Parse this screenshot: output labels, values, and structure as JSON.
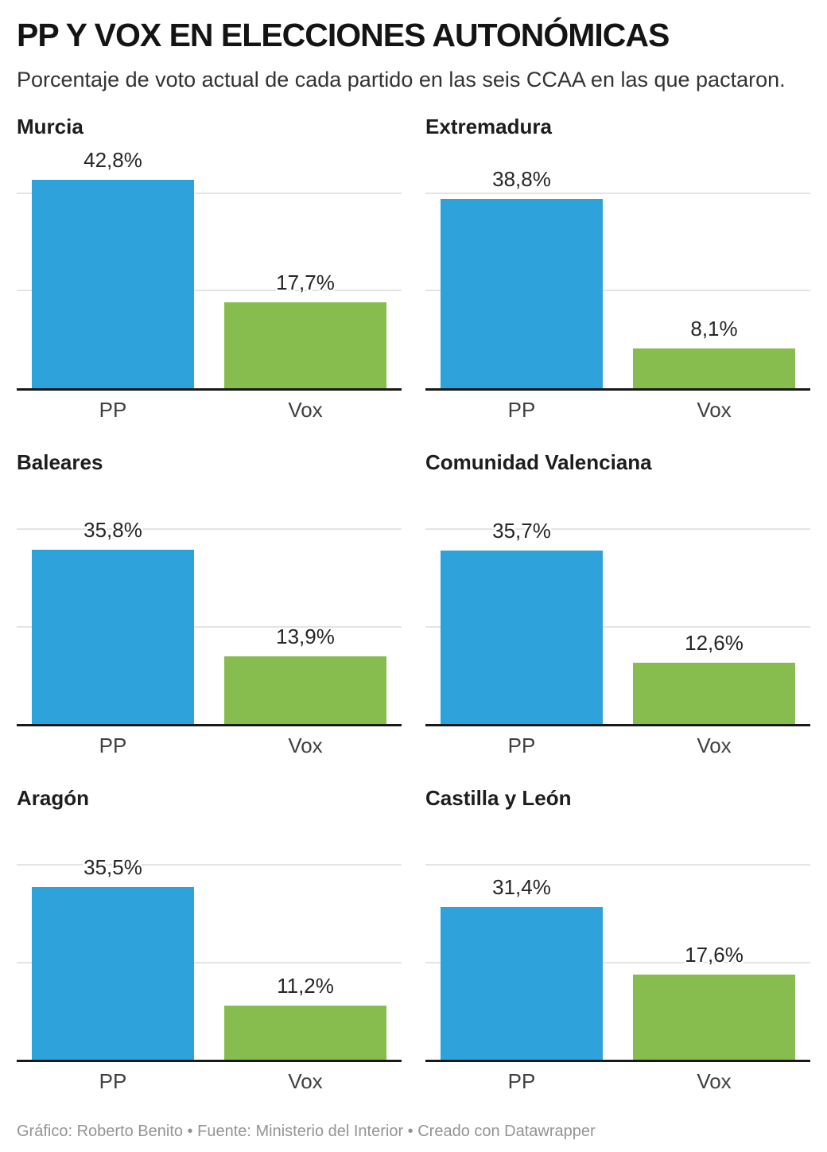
{
  "header": {
    "title": "PP Y VOX EN ELECCIONES AUTONÓMICAS",
    "subtitle": "Porcentaje de voto actual de cada partido en las seis CCAA en las que pactaron."
  },
  "chart_data": {
    "type": "bar",
    "layout": "small-multiples-2-cols-3-rows",
    "categories": [
      "PP",
      "Vox"
    ],
    "ylim": [
      0,
      50
    ],
    "gridlines": [
      20,
      40
    ],
    "grid": "horizontal-unlabeled",
    "legend_position": "none",
    "value_suffix": "%",
    "decimal_separator": ",",
    "colors": {
      "PP": "#2ea3db",
      "Vox": "#87bc4f"
    },
    "panels": [
      {
        "region": "Murcia",
        "values": {
          "PP": 42.8,
          "Vox": 17.7
        },
        "labels": {
          "PP": "42,8%",
          "Vox": "17,7%"
        }
      },
      {
        "region": "Extremadura",
        "values": {
          "PP": 38.8,
          "Vox": 8.1
        },
        "labels": {
          "PP": "38,8%",
          "Vox": "8,1%"
        }
      },
      {
        "region": "Baleares",
        "values": {
          "PP": 35.8,
          "Vox": 13.9
        },
        "labels": {
          "PP": "35,8%",
          "Vox": "13,9%"
        }
      },
      {
        "region": "Comunidad Valenciana",
        "values": {
          "PP": 35.7,
          "Vox": 12.6
        },
        "labels": {
          "PP": "35,7%",
          "Vox": "12,6%"
        }
      },
      {
        "region": "Aragón",
        "values": {
          "PP": 35.5,
          "Vox": 11.2
        },
        "labels": {
          "PP": "35,5%",
          "Vox": "11,2%"
        }
      },
      {
        "region": "Castilla y León",
        "values": {
          "PP": 31.4,
          "Vox": 17.6
        },
        "labels": {
          "PP": "31,4%",
          "Vox": "17,6%"
        }
      }
    ]
  },
  "footer": {
    "credit": "Gráfico: Roberto Benito • Fuente: Ministerio del Interior • Creado con Datawrapper"
  }
}
